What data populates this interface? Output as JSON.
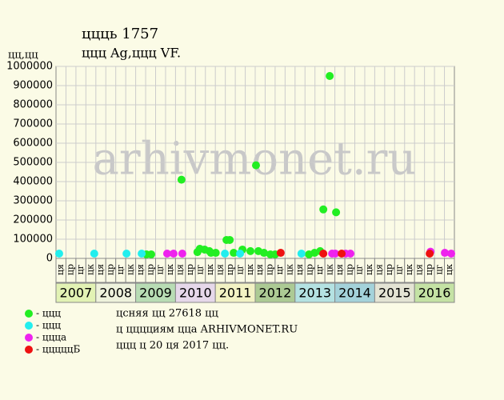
{
  "chart_data": {
    "type": "scatter",
    "title": "ццць 1757",
    "subtitle": "ццц Ag,ццц VF.",
    "y_label": "цц,цц",
    "watermark": "arhivmonet.ru",
    "notes": [
      "цсняя цц 27618 цц",
      "ц цццциям цца ARHIVMONET.RU",
      "ццц ц 20 ця 2017 цц."
    ],
    "xlim": [
      2007,
      2017
    ],
    "ylim": [
      0,
      1000000
    ],
    "yticks": [
      0,
      100000,
      200000,
      300000,
      400000,
      500000,
      600000,
      700000,
      800000,
      900000,
      1000000
    ],
    "grid": true,
    "years": [
      "2007",
      "2008",
      "2009",
      "2010",
      "2011",
      "2012",
      "2013",
      "2014",
      "2015",
      "2016"
    ],
    "year_colors": [
      "#e2f2b4",
      "#eef2dc",
      "#b8dcb4",
      "#e6d8ea",
      "#f2f2c4",
      "#acca94",
      "#b4e2e2",
      "#a4d2da",
      "#e4e4d4",
      "#c4e2a4"
    ],
    "quarters": [
      "ця",
      "цр",
      "цг",
      "цк",
      "ця",
      "цр",
      "цг",
      "цк",
      "ця",
      "цр",
      "цг",
      "цк",
      "ця",
      "цр",
      "цг",
      "цк",
      "ця",
      "цр",
      "цг",
      "цк",
      "ця",
      "цр",
      "цг",
      "цк",
      "ця",
      "цр",
      "цг",
      "цк",
      "ця",
      "цр",
      "цг",
      "цк",
      "ця",
      "цр",
      "цг",
      "цк",
      "ця",
      "цр",
      "цг",
      "цк"
    ],
    "series": [
      {
        "name": "- ццц",
        "color": "#22ee22",
        "x": [
          2009.27,
          2009.39,
          2010.15,
          2010.55,
          2010.61,
          2010.73,
          2010.85,
          2010.89,
          2011.01,
          2011.28,
          2011.36,
          2011.46,
          2011.68,
          2011.88,
          2012.02,
          2012.08,
          2012.22,
          2012.38,
          2012.5,
          2013.35,
          2013.49,
          2013.63,
          2013.71,
          2013.87,
          2014.03
        ],
        "values": [
          21000,
          21000,
          410000,
          33000,
          50000,
          46000,
          38000,
          29000,
          29000,
          96000,
          96000,
          29000,
          46000,
          38000,
          485000,
          38000,
          29000,
          21000,
          21000,
          21000,
          29000,
          38000,
          255000,
          950000,
          240000
        ]
      },
      {
        "name": "- ццц",
        "color": "#22eeee",
        "x": [
          2007.08,
          2007.96,
          2008.77,
          2009.15,
          2011.24,
          2011.62,
          2013.16
        ],
        "values": [
          25000,
          25000,
          25000,
          25000,
          25000,
          25000,
          25000
        ]
      },
      {
        "name": "- ццца",
        "color": "#ee22ee",
        "x": [
          2009.79,
          2009.95,
          2010.17,
          2013.93,
          2014.01,
          2014.27,
          2014.39,
          2016.4,
          2016.76,
          2016.92
        ],
        "values": [
          25000,
          25000,
          25000,
          25000,
          25000,
          25000,
          25000,
          35000,
          29000,
          25000
        ]
      },
      {
        "name": "- цццццБ",
        "color": "#ee1111",
        "x": [
          2012.64,
          2013.71,
          2014.17,
          2016.38
        ],
        "values": [
          29000,
          25000,
          25000,
          25000
        ]
      }
    ]
  }
}
